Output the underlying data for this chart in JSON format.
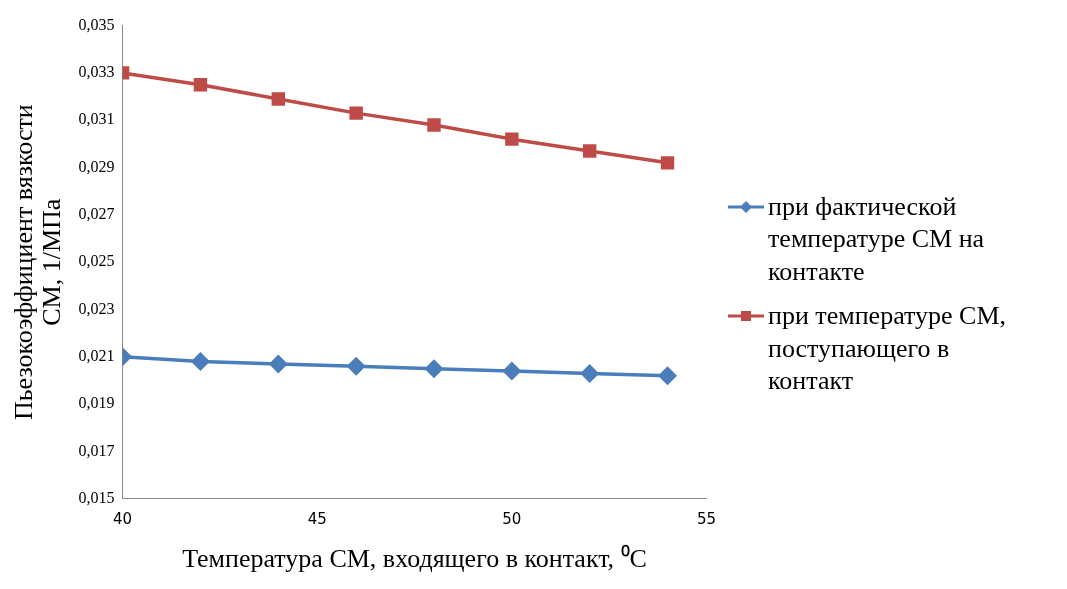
{
  "chart_data": {
    "type": "line",
    "xlabel": "Температура СМ, входящего в контакт, ⁰С",
    "ylabel": "Пьезокоэффициент вязкости СМ, 1/МПа",
    "x": [
      40,
      42,
      44,
      46,
      48,
      50,
      52,
      54
    ],
    "series": [
      {
        "name": "при фактической температуре СМ на контакте",
        "color": "#4a7ebb",
        "marker": "diamond",
        "values": [
          0.021,
          0.0208,
          0.0207,
          0.0206,
          0.0205,
          0.0204,
          0.0203,
          0.0202
        ]
      },
      {
        "name": "при температуре СМ, поступающего в контакт",
        "color": "#be4b48",
        "marker": "square",
        "values": [
          0.033,
          0.0325,
          0.0319,
          0.0313,
          0.0308,
          0.0302,
          0.0297,
          0.0292
        ]
      }
    ],
    "xlim": [
      40,
      55
    ],
    "xticks": [
      40,
      45,
      50,
      55
    ],
    "ylim": [
      0.015,
      0.035
    ],
    "yticks": [
      {
        "value": 0.015,
        "label": "0,015"
      },
      {
        "value": 0.017,
        "label": "0,017"
      },
      {
        "value": 0.019,
        "label": "0,019"
      },
      {
        "value": 0.021,
        "label": "0,021"
      },
      {
        "value": 0.023,
        "label": "0,023"
      },
      {
        "value": 0.025,
        "label": "0,025"
      },
      {
        "value": 0.027,
        "label": "0,027"
      },
      {
        "value": 0.029,
        "label": "0,029"
      },
      {
        "value": 0.031,
        "label": "0,031"
      },
      {
        "value": 0.033,
        "label": "0,033"
      },
      {
        "value": 0.035,
        "label": "0,035"
      }
    ],
    "grid": false,
    "legend": "right",
    "line_style": "solid"
  }
}
